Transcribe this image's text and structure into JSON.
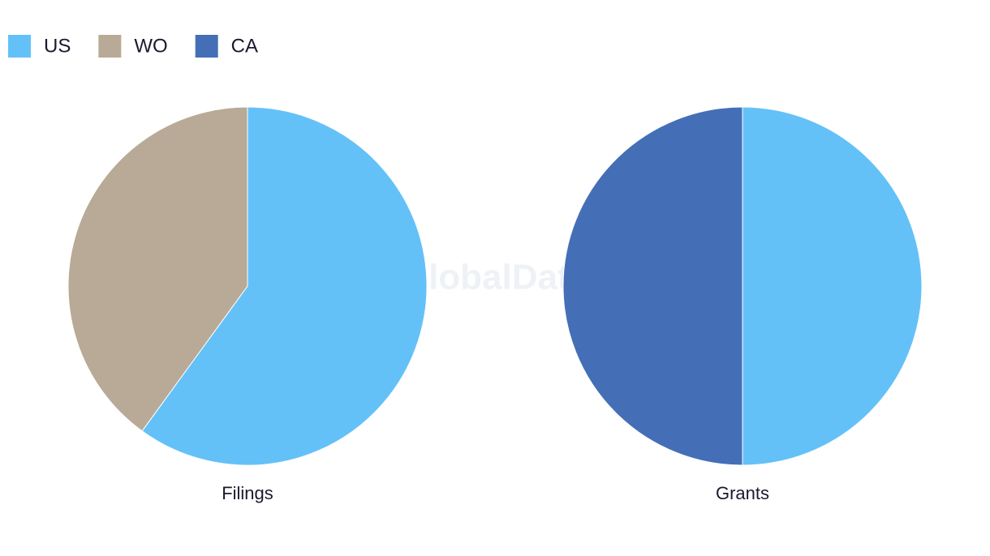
{
  "legend": [
    {
      "name": "US",
      "color": "#64c1f8"
    },
    {
      "name": "WO",
      "color": "#b8aa96"
    },
    {
      "name": "CA",
      "color": "#446fb7"
    }
  ],
  "watermark": "GlobalData",
  "chart_data": [
    {
      "type": "pie",
      "title": "Filings",
      "categories": [
        "US",
        "WO"
      ],
      "values": [
        60,
        40
      ],
      "colors": [
        "#64c1f8",
        "#b8aa96"
      ]
    },
    {
      "type": "pie",
      "title": "Grants",
      "categories": [
        "US",
        "CA"
      ],
      "values": [
        50,
        50
      ],
      "colors": [
        "#64c1f8",
        "#446fb7"
      ]
    }
  ]
}
